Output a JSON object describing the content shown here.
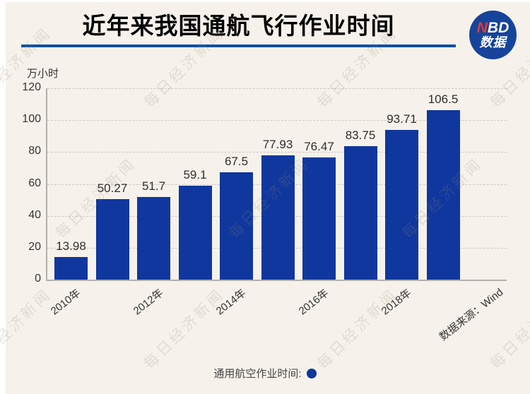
{
  "page": {
    "background": "#f6f2eb",
    "watermark_text": "每日经济新闻"
  },
  "header": {
    "title": "近年来我国通航飞行作业时间"
  },
  "logo": {
    "line1_red": "N",
    "line1_white": "BD",
    "line2": "数据"
  },
  "chart_data": {
    "type": "bar",
    "title": "近年来我国通航飞行作业时间",
    "ylabel": "万小时",
    "categories": [
      "2010年",
      "",
      "2012年",
      "",
      "2014年",
      "",
      "2016年",
      "",
      "2018年",
      ""
    ],
    "values": [
      13.98,
      50.27,
      51.7,
      59.1,
      67.5,
      77.93,
      76.47,
      83.75,
      93.71,
      106.5
    ],
    "ylim": [
      0,
      120
    ],
    "yticks": [
      0,
      20,
      40,
      60,
      80,
      100,
      120
    ],
    "grid": "horizontal-dashed",
    "bar_color": "#10379e",
    "legend": {
      "label": "通用航空作业时间:",
      "marker_color": "#10379e",
      "position": "bottom-center"
    },
    "source_label": "数据来源：Wind"
  },
  "colors": {
    "bg": "#f6f2eb",
    "bar": "#10379e",
    "underline": "#0b4fa4",
    "logo_bg": "#16449a",
    "logo_red": "#e8392e",
    "axis": "#b3b0ac",
    "grid": "#ccc8c1",
    "text": "#333333"
  }
}
